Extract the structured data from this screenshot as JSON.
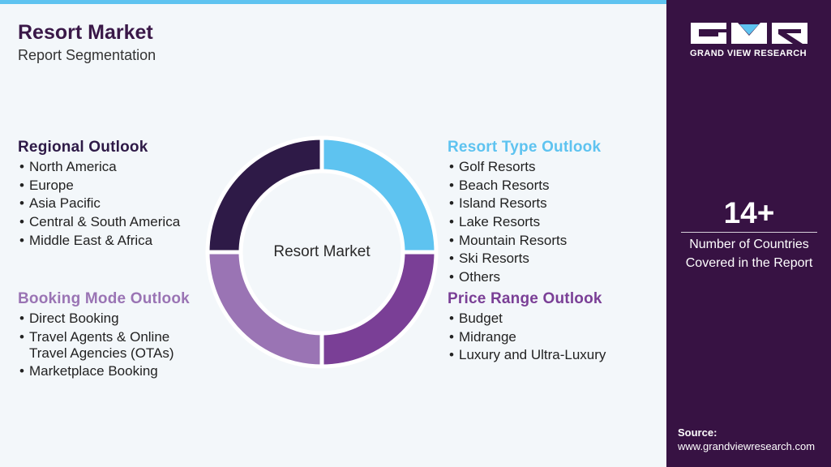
{
  "header": {
    "title": "Resort Market",
    "subtitle": "Report Segmentation"
  },
  "center_label": "Resort Market",
  "sections": [
    {
      "title": "Regional Outlook",
      "items": [
        "North America",
        "Europe",
        "Asia Pacific",
        "Central & South America",
        "Middle East & Africa"
      ]
    },
    {
      "title": "Resort Type Outlook",
      "items": [
        "Golf Resorts",
        "Beach Resorts",
        "Island Resorts",
        "Lake Resorts",
        "Mountain Resorts",
        "Ski Resorts",
        "Others"
      ]
    },
    {
      "title": "Booking Mode Outlook",
      "items": [
        "Direct Booking",
        "Travel Agents & Online Travel Agencies (OTAs)",
        "Marketplace Booking"
      ]
    },
    {
      "title": "Price Range Outlook",
      "items": [
        "Budget",
        "Midrange",
        "Luxury and Ultra-Luxury"
      ]
    }
  ],
  "sidebar": {
    "brand": "GRAND VIEW RESEARCH",
    "stat_value": "14+",
    "stat_label": "Number of Countries Covered in the Report",
    "source_label": "Source:",
    "source_url": "www.grandviewresearch.com"
  }
}
